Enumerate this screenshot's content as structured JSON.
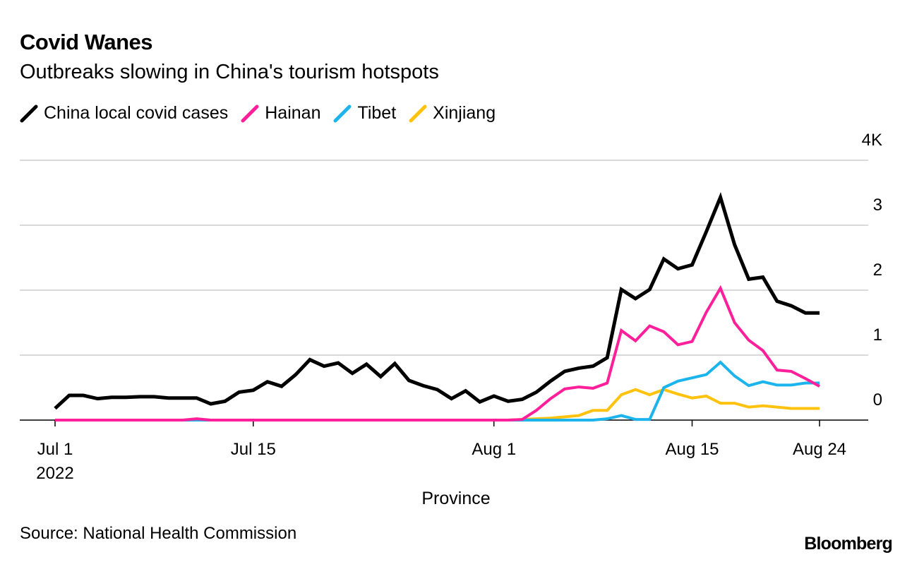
{
  "chart_data": {
    "type": "line",
    "title": "Covid Wanes",
    "subtitle": "Outbreaks slowing in China's tourism hotspots",
    "x_label": "Province",
    "source": "Source: National Health Commission",
    "brand": "Bloomberg",
    "x": [
      "2022-07-01",
      "2022-07-02",
      "2022-07-03",
      "2022-07-04",
      "2022-07-05",
      "2022-07-06",
      "2022-07-07",
      "2022-07-08",
      "2022-07-09",
      "2022-07-10",
      "2022-07-11",
      "2022-07-12",
      "2022-07-13",
      "2022-07-14",
      "2022-07-15",
      "2022-07-16",
      "2022-07-17",
      "2022-07-18",
      "2022-07-19",
      "2022-07-20",
      "2022-07-21",
      "2022-07-22",
      "2022-07-23",
      "2022-07-24",
      "2022-07-25",
      "2022-07-26",
      "2022-07-27",
      "2022-07-28",
      "2022-07-29",
      "2022-07-30",
      "2022-07-31",
      "2022-08-01",
      "2022-08-02",
      "2022-08-03",
      "2022-08-04",
      "2022-08-05",
      "2022-08-06",
      "2022-08-07",
      "2022-08-08",
      "2022-08-09",
      "2022-08-10",
      "2022-08-11",
      "2022-08-12",
      "2022-08-13",
      "2022-08-14",
      "2022-08-15",
      "2022-08-16",
      "2022-08-17",
      "2022-08-18",
      "2022-08-19",
      "2022-08-20",
      "2022-08-21",
      "2022-08-22",
      "2022-08-23",
      "2022-08-24"
    ],
    "series": [
      {
        "name": "China local covid cases",
        "color": "#000000",
        "values": [
          0.18,
          0.38,
          0.38,
          0.33,
          0.35,
          0.35,
          0.36,
          0.36,
          0.34,
          0.34,
          0.34,
          0.25,
          0.29,
          0.43,
          0.46,
          0.59,
          0.52,
          0.7,
          0.93,
          0.83,
          0.88,
          0.72,
          0.86,
          0.67,
          0.87,
          0.61,
          0.53,
          0.47,
          0.33,
          0.45,
          0.28,
          0.37,
          0.29,
          0.32,
          0.43,
          0.6,
          0.75,
          0.8,
          0.83,
          0.96,
          2.01,
          1.87,
          2.01,
          2.48,
          2.33,
          2.39,
          2.9,
          3.43,
          2.7,
          2.17,
          2.2,
          1.83,
          1.76,
          1.65,
          1.65
        ]
      },
      {
        "name": "Hainan",
        "color": "#ff1f9a",
        "values": [
          0,
          0,
          0,
          0,
          0,
          0,
          0,
          0,
          0,
          0,
          0.02,
          0,
          0,
          0,
          0,
          0,
          0,
          0,
          0,
          0,
          0,
          0,
          0,
          0,
          0,
          0,
          0,
          0,
          0,
          0,
          0,
          0,
          0,
          0.01,
          0.15,
          0.33,
          0.48,
          0.51,
          0.49,
          0.57,
          1.38,
          1.22,
          1.45,
          1.36,
          1.16,
          1.21,
          1.66,
          2.03,
          1.5,
          1.23,
          1.07,
          0.77,
          0.75,
          0.64,
          0.52
        ]
      },
      {
        "name": "Tibet",
        "color": "#1cb4ec",
        "values": [
          0,
          0,
          0,
          0,
          0,
          0,
          0,
          0,
          0,
          0,
          0,
          0,
          0,
          0,
          0,
          0,
          0,
          0,
          0,
          0,
          0,
          0,
          0,
          0,
          0,
          0,
          0,
          0,
          0,
          0,
          0,
          0,
          0,
          0,
          0,
          0,
          0,
          0,
          0,
          0.02,
          0.07,
          0.01,
          0.01,
          0.5,
          0.6,
          0.65,
          0.7,
          0.89,
          0.68,
          0.53,
          0.59,
          0.54,
          0.54,
          0.57,
          0.57
        ]
      },
      {
        "name": "Xinjiang",
        "color": "#ffc20e",
        "values": [
          0,
          0,
          0,
          0,
          0,
          0,
          0,
          0,
          0,
          0,
          0,
          0,
          0,
          0,
          0,
          0,
          0,
          0,
          0,
          0,
          0,
          0,
          0,
          0,
          0,
          0,
          0,
          0,
          0,
          0,
          0,
          0,
          0,
          0.01,
          0.02,
          0.03,
          0.05,
          0.07,
          0.15,
          0.15,
          0.39,
          0.47,
          0.39,
          0.47,
          0.4,
          0.34,
          0.37,
          0.26,
          0.26,
          0.2,
          0.22,
          0.2,
          0.18,
          0.18,
          0.18
        ]
      }
    ],
    "xlim": [
      "2022-07-01",
      "2022-08-24"
    ],
    "xticks": [
      {
        "value": "2022-07-01",
        "label": "Jul 1\n2022"
      },
      {
        "value": "2022-07-15",
        "label": "Jul 15"
      },
      {
        "value": "2022-08-01",
        "label": "Aug 1"
      },
      {
        "value": "2022-08-15",
        "label": "Aug 15"
      },
      {
        "value": "2022-08-24",
        "label": "Aug 24"
      }
    ],
    "ylim": [
      0,
      4
    ],
    "yticks": [
      0,
      1,
      2,
      3,
      {
        "value": 4,
        "label": "4K"
      }
    ],
    "grid": true,
    "legend": "top"
  }
}
